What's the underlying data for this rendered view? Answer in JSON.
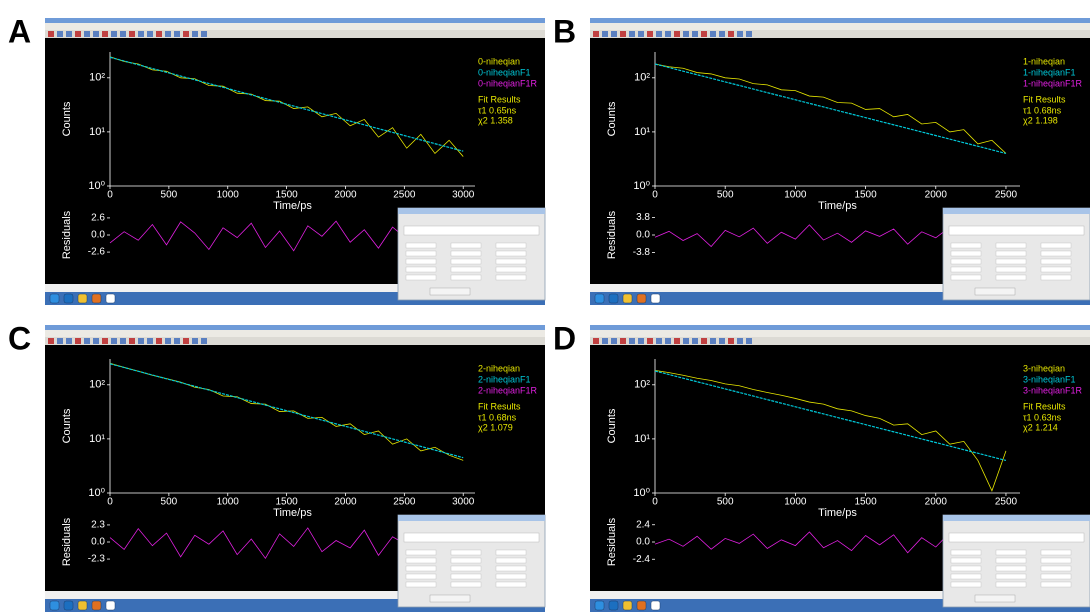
{
  "panels": [
    {
      "label": "A",
      "chart_data": {
        "type": "line",
        "x_label": "Time/ps",
        "y_label": "Counts",
        "residual_label": "Residuals",
        "log_scale": true,
        "xlim": [
          0,
          3100
        ],
        "xticks": [
          0,
          500,
          1000,
          1500,
          2000,
          2500,
          3000
        ],
        "ylim": [
          1,
          300
        ],
        "yticks": [
          {
            "value": 1,
            "label": "10⁰"
          },
          {
            "value": 10,
            "label": "10¹"
          },
          {
            "value": 100,
            "label": "10²"
          }
        ],
        "residual_ylim": [
          -3.5,
          3.5
        ],
        "residual_yticks": [
          {
            "value": 2.6,
            "label": "2.6"
          },
          {
            "value": 0,
            "label": "0.0"
          },
          {
            "value": -2.6,
            "label": "-2.6"
          }
        ],
        "x": [
          0,
          120,
          240,
          360,
          480,
          600,
          720,
          840,
          960,
          1080,
          1200,
          1320,
          1440,
          1560,
          1680,
          1800,
          1920,
          2040,
          2160,
          2280,
          2400,
          2520,
          2640,
          2760,
          2880,
          3000
        ],
        "series": [
          {
            "name": "0-niheqian",
            "color": "#e6e600",
            "values": [
              245,
              200,
              180,
              140,
              132,
              100,
              96,
              72,
              70,
              52,
              50,
              38,
              37,
              27,
              29,
              19,
              22,
              13,
              17,
              8,
              12,
              5,
              9,
              4,
              7,
              3.5
            ]
          },
          {
            "name": "0-niheqianF1",
            "color": "#00c8d8",
            "x": [
              0,
              3000
            ],
            "values": [
              240,
              4.4
            ]
          },
          {
            "name": "0-niheqianF1R",
            "color": "#e020e0",
            "axis": "residual",
            "values": [
              -1.2,
              0.5,
              -0.8,
              1.6,
              -1.5,
              2.0,
              0.3,
              -2.2,
              1.1,
              -0.4,
              1.8,
              -1.9,
              0.6,
              -2.4,
              1.4,
              -0.2,
              2.1,
              -1.1,
              0.8,
              -2.0,
              1.2,
              -0.6,
              1.9,
              -1.4,
              0.4,
              -0.9
            ]
          }
        ],
        "fit_results": {
          "title": "Fit Results",
          "lines": [
            "τ1  0.65ns",
            "χ2  1.358"
          ]
        }
      }
    },
    {
      "label": "B",
      "chart_data": {
        "type": "line",
        "x_label": "Time/ps",
        "y_label": "Counts",
        "residual_label": "Residuals",
        "log_scale": true,
        "xlim": [
          0,
          2600
        ],
        "xticks": [
          0,
          500,
          1000,
          1500,
          2000,
          2500
        ],
        "ylim": [
          1,
          300
        ],
        "yticks": [
          {
            "value": 1,
            "label": "10⁰"
          },
          {
            "value": 10,
            "label": "10¹"
          },
          {
            "value": 100,
            "label": "10²"
          }
        ],
        "residual_ylim": [
          -5,
          5
        ],
        "residual_yticks": [
          {
            "value": 3.8,
            "label": "3.8"
          },
          {
            "value": 0,
            "label": "0.0"
          },
          {
            "value": -3.8,
            "label": "-3.8"
          }
        ],
        "x": [
          0,
          100,
          200,
          300,
          400,
          500,
          600,
          700,
          800,
          900,
          1000,
          1100,
          1200,
          1300,
          1400,
          1500,
          1600,
          1700,
          1800,
          1900,
          2000,
          2100,
          2200,
          2300,
          2400,
          2500
        ],
        "series": [
          {
            "name": "1-niheqian",
            "color": "#e6e600",
            "values": [
              180,
              160,
              150,
              125,
              118,
              100,
              95,
              78,
              74,
              60,
              58,
              46,
              44,
              35,
              34,
              26,
              27,
              19,
              21,
              14,
              15,
              10,
              11,
              6,
              7,
              4
            ]
          },
          {
            "name": "1-niheqianF1",
            "color": "#00c8d8",
            "x": [
              0,
              2500
            ],
            "values": [
              180,
              4
            ]
          },
          {
            "name": "1-niheqianF1R",
            "color": "#e020e0",
            "axis": "residual",
            "values": [
              -0.5,
              0.8,
              -1.2,
              0.3,
              -2.5,
              1.0,
              -0.4,
              1.5,
              -1.8,
              0.6,
              -0.9,
              2.2,
              -1.1,
              0.4,
              -1.6,
              0.9,
              -0.3,
              1.3,
              -2.0,
              0.7,
              -0.6,
              1.7,
              -1.3,
              0.2,
              -0.8,
              0.5
            ]
          }
        ],
        "fit_results": {
          "title": "Fit Results",
          "lines": [
            "τ1  0.68ns",
            "χ2  1.198"
          ]
        }
      }
    },
    {
      "label": "C",
      "chart_data": {
        "type": "line",
        "x_label": "Time/ps",
        "y_label": "Counts",
        "residual_label": "Residuals",
        "log_scale": true,
        "xlim": [
          0,
          3100
        ],
        "xticks": [
          0,
          500,
          1000,
          1500,
          2000,
          2500,
          3000
        ],
        "ylim": [
          1,
          300
        ],
        "yticks": [
          {
            "value": 1,
            "label": "10⁰"
          },
          {
            "value": 10,
            "label": "10¹"
          },
          {
            "value": 100,
            "label": "10²"
          }
        ],
        "residual_ylim": [
          -3.1,
          3.1
        ],
        "residual_yticks": [
          {
            "value": 2.3,
            "label": "2.3"
          },
          {
            "value": 0,
            "label": "0.0"
          },
          {
            "value": -2.3,
            "label": "-2.3"
          }
        ],
        "x": [
          0,
          120,
          240,
          360,
          480,
          600,
          720,
          840,
          960,
          1080,
          1200,
          1320,
          1440,
          1560,
          1680,
          1800,
          1920,
          2040,
          2160,
          2280,
          2400,
          2520,
          2640,
          2760,
          2880,
          3000
        ],
        "series": [
          {
            "name": "2-niheqian",
            "color": "#e6e600",
            "values": [
              250,
              210,
              178,
              150,
              130,
              112,
              90,
              82,
              62,
              60,
              45,
              44,
              32,
              33,
              24,
              25,
              17,
              19,
              12,
              14,
              8,
              10,
              6,
              7,
              5,
              4
            ]
          },
          {
            "name": "2-niheqianF1",
            "color": "#00c8d8",
            "x": [
              0,
              3000
            ],
            "values": [
              245,
              4.5
            ]
          },
          {
            "name": "2-niheqianF1R",
            "color": "#e020e0",
            "axis": "residual",
            "values": [
              0.6,
              -1.0,
              1.8,
              -0.5,
              1.2,
              -2.0,
              0.9,
              -0.3,
              1.5,
              -1.7,
              0.4,
              -2.2,
              1.1,
              -0.6,
              1.9,
              -1.3,
              0.2,
              -0.8,
              1.6,
              -1.8,
              0.7,
              -0.4,
              1.3,
              -1.0,
              0.5,
              -0.7
            ]
          }
        ],
        "fit_results": {
          "title": "Fit Results",
          "lines": [
            "τ1  0.68ns",
            "χ2  1.079"
          ]
        }
      }
    },
    {
      "label": "D",
      "chart_data": {
        "type": "line",
        "x_label": "Time/ps",
        "y_label": "Counts",
        "residual_label": "Residuals",
        "log_scale": true,
        "xlim": [
          0,
          2600
        ],
        "xticks": [
          0,
          500,
          1000,
          1500,
          2000,
          2500
        ],
        "ylim": [
          1,
          300
        ],
        "yticks": [
          {
            "value": 1,
            "label": "10⁰"
          },
          {
            "value": 10,
            "label": "10¹"
          },
          {
            "value": 100,
            "label": "10²"
          }
        ],
        "residual_ylim": [
          -3.2,
          3.2
        ],
        "residual_yticks": [
          {
            "value": 2.4,
            "label": "2.4"
          },
          {
            "value": 0,
            "label": "0.0"
          },
          {
            "value": -2.4,
            "label": "-2.4"
          }
        ],
        "x": [
          0,
          100,
          200,
          300,
          400,
          500,
          600,
          700,
          800,
          900,
          1000,
          1100,
          1200,
          1300,
          1400,
          1500,
          1600,
          1700,
          1800,
          1900,
          2000,
          2100,
          2200,
          2300,
          2400,
          2500
        ],
        "series": [
          {
            "name": "3-niheqian",
            "color": "#e6e600",
            "values": [
              185,
              168,
              150,
              132,
              120,
              104,
              96,
              82,
              72,
              64,
              56,
              48,
              44,
              36,
              33,
              27,
              24,
              18,
              19,
              12,
              14,
              8,
              9,
              4,
              1.1,
              6
            ]
          },
          {
            "name": "3-niheqianF1",
            "color": "#00c8d8",
            "x": [
              0,
              2500
            ],
            "values": [
              180,
              4
            ]
          },
          {
            "name": "3-niheqianF1R",
            "color": "#e020e0",
            "axis": "residual",
            "values": [
              -0.3,
              0.4,
              -0.6,
              0.8,
              -1.0,
              0.5,
              -0.2,
              1.1,
              -0.9,
              0.3,
              -0.5,
              1.4,
              -0.8,
              0.2,
              -1.2,
              0.9,
              -0.4,
              1.0,
              -1.5,
              0.6,
              -0.7,
              1.3,
              -1.6,
              0.9,
              -2.2,
              2.0
            ]
          }
        ],
        "fit_results": {
          "title": "Fit Results",
          "lines": [
            "τ1  0.63ns",
            "χ2  1.214"
          ]
        }
      }
    }
  ]
}
